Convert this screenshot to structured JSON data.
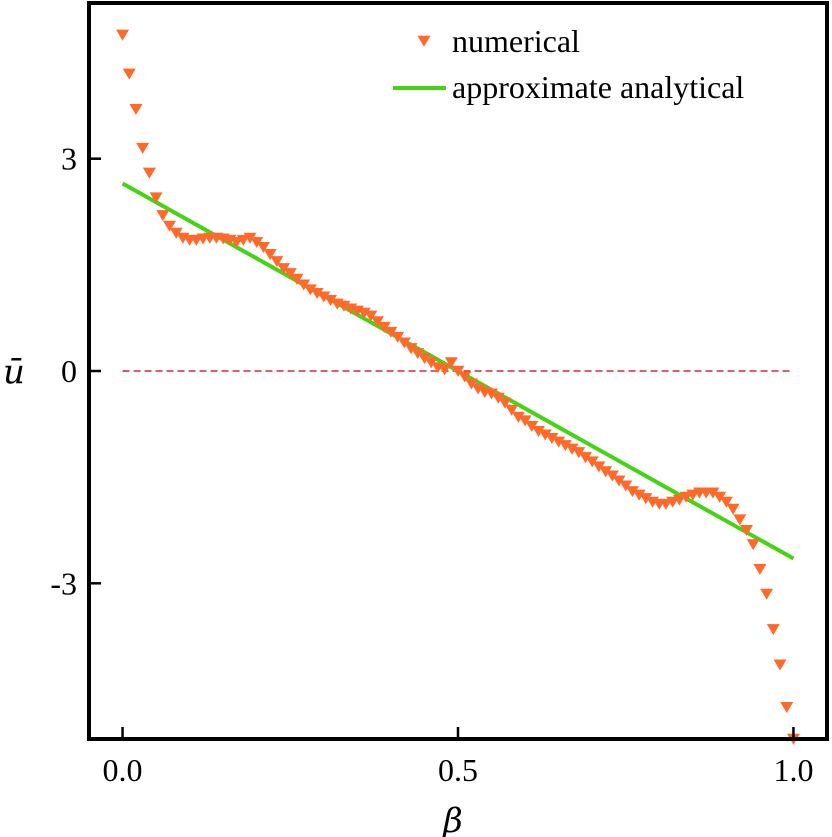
{
  "chart_data": {
    "type": "scatter",
    "title": "",
    "xlabel": "β",
    "ylabel": "ū",
    "xlim": [
      -0.05,
      1.05
    ],
    "ylim": [
      -5.2,
      5.2
    ],
    "x_ticks": [
      0.0,
      0.5,
      1.0
    ],
    "x_tick_labels": [
      "0.0",
      "0.5",
      "1.0"
    ],
    "y_ticks": [
      -3,
      0,
      3
    ],
    "y_tick_labels": [
      "-3",
      "0",
      "3"
    ],
    "grid": false,
    "legend_position": "top-right",
    "reference_line": {
      "y": 0,
      "style": "dashed",
      "color": "#d6283c"
    },
    "series": [
      {
        "name": "numerical",
        "kind": "scatter",
        "marker": "triangle-down",
        "color": "#ff6a2a",
        "x": [
          0.0,
          0.01,
          0.02,
          0.03,
          0.04,
          0.05,
          0.06,
          0.07,
          0.08,
          0.09,
          0.1,
          0.11,
          0.12,
          0.13,
          0.14,
          0.15,
          0.16,
          0.17,
          0.18,
          0.19,
          0.2,
          0.21,
          0.22,
          0.23,
          0.24,
          0.25,
          0.26,
          0.27,
          0.28,
          0.29,
          0.3,
          0.31,
          0.32,
          0.33,
          0.34,
          0.35,
          0.36,
          0.37,
          0.38,
          0.39,
          0.4,
          0.41,
          0.42,
          0.43,
          0.44,
          0.45,
          0.46,
          0.47,
          0.48,
          0.49,
          0.5,
          0.51,
          0.52,
          0.53,
          0.54,
          0.55,
          0.56,
          0.57,
          0.58,
          0.59,
          0.6,
          0.61,
          0.62,
          0.63,
          0.64,
          0.65,
          0.66,
          0.67,
          0.68,
          0.69,
          0.7,
          0.71,
          0.72,
          0.73,
          0.74,
          0.75,
          0.76,
          0.77,
          0.78,
          0.79,
          0.8,
          0.81,
          0.82,
          0.83,
          0.84,
          0.85,
          0.86,
          0.87,
          0.88,
          0.89,
          0.9,
          0.91,
          0.92,
          0.93,
          0.94,
          0.95,
          0.96,
          0.97,
          0.98,
          0.99,
          1.0
        ],
        "y": [
          4.75,
          4.2,
          3.7,
          3.15,
          2.8,
          2.45,
          2.2,
          2.05,
          1.95,
          1.88,
          1.85,
          1.85,
          1.87,
          1.88,
          1.88,
          1.87,
          1.85,
          1.82,
          1.85,
          1.88,
          1.82,
          1.75,
          1.65,
          1.55,
          1.45,
          1.38,
          1.3,
          1.22,
          1.15,
          1.1,
          1.05,
          1.0,
          0.95,
          0.92,
          0.88,
          0.85,
          0.82,
          0.78,
          0.7,
          0.62,
          0.55,
          0.48,
          0.4,
          0.32,
          0.25,
          0.18,
          0.12,
          0.05,
          0.02,
          0.12,
          0.0,
          -0.08,
          -0.18,
          -0.25,
          -0.3,
          -0.32,
          -0.38,
          -0.45,
          -0.55,
          -0.65,
          -0.7,
          -0.78,
          -0.85,
          -0.9,
          -0.95,
          -1.0,
          -1.05,
          -1.1,
          -1.15,
          -1.22,
          -1.28,
          -1.35,
          -1.42,
          -1.48,
          -1.55,
          -1.62,
          -1.7,
          -1.75,
          -1.8,
          -1.85,
          -1.88,
          -1.88,
          -1.85,
          -1.82,
          -1.78,
          -1.75,
          -1.72,
          -1.72,
          -1.72,
          -1.78,
          -1.85,
          -1.95,
          -2.1,
          -2.25,
          -2.45,
          -2.8,
          -3.15,
          -3.65,
          -4.15,
          -4.75,
          -5.2
        ]
      },
      {
        "name": "approximate analytical",
        "kind": "line",
        "color": "#44d414",
        "x": [
          0.0,
          1.0
        ],
        "y": [
          2.65,
          -2.65
        ]
      }
    ]
  }
}
